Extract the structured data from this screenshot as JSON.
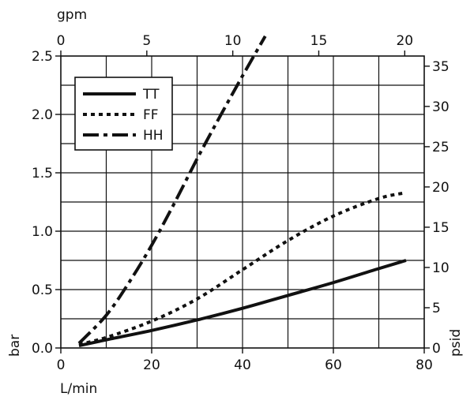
{
  "chart_data": {
    "type": "line",
    "title": "",
    "xlabel": "L/min",
    "ylabel": "bar",
    "x2label": "gpm",
    "y2label": "psid",
    "xlim": [
      0,
      80
    ],
    "ylim": [
      0,
      2.5
    ],
    "x2lim": [
      0,
      21.134
    ],
    "y2lim": [
      0,
      36.26
    ],
    "x_ticks": [
      0,
      20,
      40,
      60,
      80
    ],
    "x_tick_labels": [
      "0",
      "20",
      "40",
      "60",
      "80"
    ],
    "y_ticks": [
      0,
      0.5,
      1.0,
      1.5,
      2.0,
      2.5
    ],
    "y_tick_labels": [
      "0.0",
      "0.5",
      "1.0",
      "1.5",
      "2.0",
      "2.5"
    ],
    "x2_ticks": [
      0,
      5,
      10,
      15,
      20
    ],
    "x2_tick_labels": [
      "0",
      "5",
      "10",
      "15",
      "20"
    ],
    "y2_ticks": [
      0,
      5,
      10,
      15,
      20,
      25,
      30,
      35
    ],
    "y2_tick_labels": [
      "0",
      "5",
      "10",
      "15",
      "20",
      "25",
      "30",
      "35"
    ],
    "grid": true,
    "legend_position": "top-left",
    "series": [
      {
        "name": "TT",
        "style": "solid",
        "x": [
          4,
          10,
          20,
          30,
          40,
          50,
          60,
          70,
          76
        ],
        "y": [
          0.02,
          0.07,
          0.15,
          0.24,
          0.34,
          0.45,
          0.56,
          0.68,
          0.75
        ]
      },
      {
        "name": "FF",
        "style": "dotted",
        "x": [
          4,
          10,
          20,
          30,
          40,
          50,
          60,
          70,
          76
        ],
        "y": [
          0.03,
          0.09,
          0.23,
          0.42,
          0.67,
          0.92,
          1.13,
          1.28,
          1.33
        ]
      },
      {
        "name": "HH",
        "style": "dashdot",
        "x": [
          4,
          10,
          15,
          20,
          25,
          30,
          35,
          40,
          45
        ],
        "y": [
          0.04,
          0.28,
          0.56,
          0.88,
          1.24,
          1.62,
          1.98,
          2.33,
          2.67
        ]
      }
    ],
    "color": "#111111"
  }
}
